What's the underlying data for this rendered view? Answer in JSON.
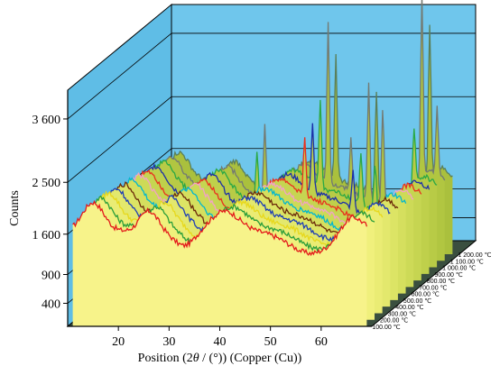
{
  "chart_data": {
    "type": "line",
    "subtype": "3d-waterfall",
    "title": "",
    "xlabel_parts": [
      "Position (2",
      "θ",
      " / (°)) (Copper (Cu))"
    ],
    "ylabel": "Counts",
    "xlim": [
      10,
      70
    ],
    "ylim": [
      0,
      4100
    ],
    "x_ticks": [
      20,
      30,
      40,
      50,
      60
    ],
    "y_ticks": [
      {
        "value": 400,
        "label": "400"
      },
      {
        "value": 900,
        "label": "900"
      },
      {
        "value": 1600,
        "label": "1 600"
      },
      {
        "value": 2500,
        "label": "2 500"
      },
      {
        "value": 3600,
        "label": "3 600"
      }
    ],
    "grid": true,
    "colors": {
      "back_wall": "#6fc6ec",
      "side_wall": "#5fbde6",
      "floor": "#3a4f3f",
      "front_fill": "#f7f38a",
      "front_line": "#e0231d"
    },
    "series": [
      {
        "name": "100.00 ℃",
        "color": "#e41a1c",
        "fill": "#f7f38a",
        "peaks": []
      },
      {
        "name": "200.00 ℃",
        "color": "#2a9d3a",
        "fill": "#f0f07c",
        "peaks": []
      },
      {
        "name": "300.00 ℃",
        "color": "#e7d81c",
        "fill": "#eaec74",
        "peaks": []
      },
      {
        "name": "400.00 ℃",
        "color": "#1f3fb5",
        "fill": "#e3e86d",
        "peaks": []
      },
      {
        "name": "500.00 ℃",
        "color": "#6b2a0a",
        "fill": "#dce465",
        "peaks": []
      },
      {
        "name": "600.00 ℃",
        "color": "#00b7d0",
        "fill": "#d5df5e",
        "peaks": []
      },
      {
        "name": "700.00 ℃",
        "color": "#f2a2c6",
        "fill": "#cdda57",
        "peaks": []
      },
      {
        "name": "800.00 ℃",
        "color": "#e9301e",
        "fill": "#c6d551",
        "peaks": [
          [
            46.0,
            1050
          ]
        ]
      },
      {
        "name": "900.00 ℃",
        "color": "#1c2fa8",
        "fill": "#bfd04b",
        "peaks": [
          [
            46.0,
            1150
          ],
          [
            54.0,
            650
          ]
        ]
      },
      {
        "name": "1 000.00 ℃",
        "color": "#2aa845",
        "fill": "#b8cb46",
        "peaks": [
          [
            33.5,
            900
          ],
          [
            46.0,
            1500
          ],
          [
            54.0,
            900
          ],
          [
            56.8,
            850
          ],
          [
            64.5,
            1000
          ]
        ]
      },
      {
        "name": "1 100.00 ℃",
        "color": "#737a72",
        "fill": "#b1c641",
        "peaks": [
          [
            33.5,
            1300
          ],
          [
            46.0,
            2800
          ],
          [
            50.5,
            900
          ],
          [
            54.0,
            2000
          ],
          [
            56.8,
            1700
          ],
          [
            64.5,
            3200
          ],
          [
            67.5,
            1200
          ]
        ]
      },
      {
        "name": "1 200.00 ℃",
        "color": "#5a7f5a",
        "fill": "#aac03d",
        "peaks": [
          [
            46.0,
            2100
          ],
          [
            54.0,
            1800
          ],
          [
            64.5,
            2600
          ]
        ]
      }
    ]
  }
}
